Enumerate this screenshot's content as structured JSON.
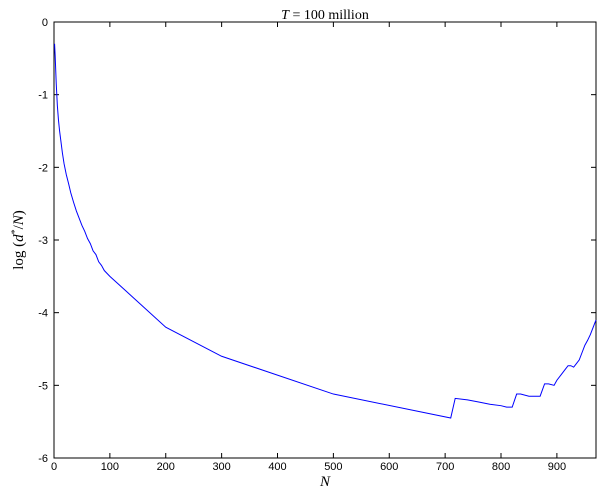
{
  "chart_data": {
    "type": "line",
    "title": "T = 100 million",
    "xlabel": "N",
    "ylabel": "log (d*/N)",
    "xlim": [
      0,
      970
    ],
    "ylim": [
      -6,
      0
    ],
    "xticks": [
      0,
      100,
      200,
      300,
      400,
      500,
      600,
      700,
      800,
      900
    ],
    "xtick_labels": [
      "0",
      "100",
      "200",
      "300",
      "400",
      "500",
      "600",
      "700",
      "800",
      "900"
    ],
    "yticks": [
      0,
      -1,
      -2,
      -3,
      -4,
      -5,
      -6
    ],
    "ytick_labels": [
      "0",
      "-1",
      "-2",
      "-3",
      "-4",
      "-5",
      "-6"
    ],
    "grid": false,
    "series": [
      {
        "color": "#0000ff",
        "x": [
          1,
          2,
          4,
          6,
          8,
          10,
          12,
          15,
          18,
          22,
          26,
          30,
          35,
          40,
          45,
          50,
          55,
          60,
          65,
          70,
          75,
          80,
          85,
          90,
          100,
          200,
          300,
          500,
          710,
          718,
          740,
          760,
          780,
          800,
          810,
          820,
          828,
          835,
          850,
          860,
          870,
          878,
          885,
          895,
          900,
          908,
          915,
          920,
          925,
          930,
          935,
          940,
          945,
          950,
          955,
          960,
          965,
          970
        ],
        "y": [
          -0.3,
          -0.45,
          -0.85,
          -1.15,
          -1.35,
          -1.5,
          -1.62,
          -1.8,
          -1.95,
          -2.1,
          -2.22,
          -2.35,
          -2.48,
          -2.6,
          -2.7,
          -2.8,
          -2.88,
          -2.98,
          -3.05,
          -3.15,
          -3.2,
          -3.3,
          -3.35,
          -3.42,
          -3.5,
          -4.2,
          -4.6,
          -5.12,
          -5.45,
          -5.18,
          -5.2,
          -5.23,
          -5.26,
          -5.28,
          -5.3,
          -5.3,
          -5.12,
          -5.12,
          -5.15,
          -5.15,
          -5.15,
          -4.98,
          -4.98,
          -5.0,
          -4.93,
          -4.85,
          -4.78,
          -4.73,
          -4.73,
          -4.75,
          -4.7,
          -4.65,
          -4.55,
          -4.45,
          -4.38,
          -4.3,
          -4.2,
          -4.1
        ]
      }
    ]
  }
}
